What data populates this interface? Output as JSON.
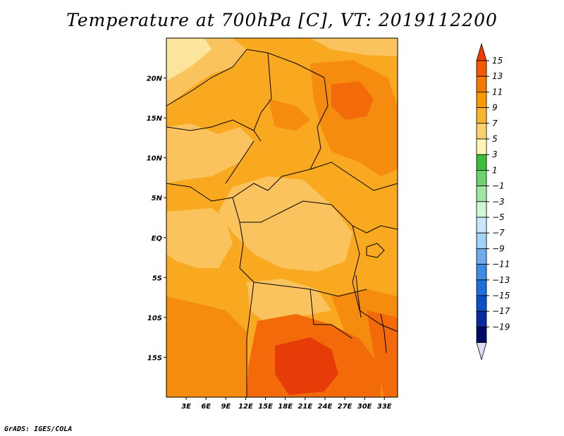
{
  "title": "Temperature at 700hPa [C], VT: 2019112200",
  "credit": "GrADS: IGES/COLA",
  "map": {
    "lat_range": [
      -20,
      25
    ],
    "lon_range": [
      0,
      35
    ],
    "lat_ticks": [
      {
        "label": "20N",
        "lat": 20
      },
      {
        "label": "15N",
        "lat": 15
      },
      {
        "label": "10N",
        "lat": 10
      },
      {
        "label": "5N",
        "lat": 5
      },
      {
        "label": "EQ",
        "lat": 0
      },
      {
        "label": "5S",
        "lat": -5
      },
      {
        "label": "10S",
        "lat": -10
      },
      {
        "label": "15S",
        "lat": -15
      }
    ],
    "lon_ticks": [
      {
        "label": "3E",
        "lon": 3
      },
      {
        "label": "6E",
        "lon": 6
      },
      {
        "label": "9E",
        "lon": 9
      },
      {
        "label": "12E",
        "lon": 12
      },
      {
        "label": "15E",
        "lon": 15
      },
      {
        "label": "18E",
        "lon": 18
      },
      {
        "label": "21E",
        "lon": 21
      },
      {
        "label": "24E",
        "lon": 24
      },
      {
        "label": "27E",
        "lon": 27
      },
      {
        "label": "30E",
        "lon": 30
      },
      {
        "label": "33E",
        "lon": 33
      }
    ]
  },
  "colorbar": {
    "labels": [
      "15",
      "13",
      "11",
      "9",
      "7",
      "5",
      "3",
      "1",
      "−1",
      "−3",
      "−5",
      "−7",
      "−9",
      "−11",
      "−13",
      "−15",
      "−17",
      "−19"
    ],
    "colors": [
      "#f03c00",
      "#f55a00",
      "#f57800",
      "#f99b00",
      "#f9b42d",
      "#f9d26e",
      "#fff5b4",
      "#3cbe3c",
      "#6ed26e",
      "#a0e6a0",
      "#d2f5d2",
      "#c8e6fa",
      "#a0d2fa",
      "#6eaaf0",
      "#3c8ce6",
      "#1e6edc",
      "#0a50c8",
      "#0a28a0",
      "#000a64",
      "#dcdcfa"
    ]
  },
  "palette": {
    "c5": "#fde49c",
    "c7": "#fbc35d",
    "c9": "#f9a91f",
    "c11": "#f58c0f",
    "c13": "#f26a0a",
    "c15": "#e63c07"
  }
}
